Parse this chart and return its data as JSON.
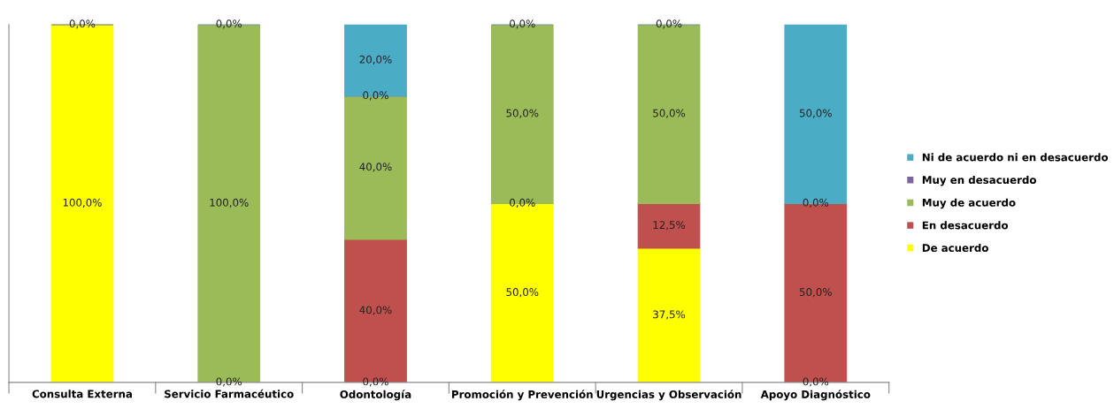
{
  "chart_data": {
    "type": "bar",
    "stacked": true,
    "tick_labels": "x",
    "grid": false,
    "legend": "right",
    "categories": [
      "Consulta Externa",
      "Servicio Farmacéutico",
      "Odontología",
      "Promoción y Prevención",
      "Urgencias y Observación",
      "Apoyo Diagnóstico"
    ],
    "series": [
      {
        "name": "De acuerdo",
        "color": "#ffff00",
        "values": [
          100,
          0,
          0,
          50,
          37.5,
          0
        ],
        "value_labels": [
          "100,0%",
          "0,0%",
          "0,0%",
          "50,0%",
          "37,5%",
          "0,0%"
        ]
      },
      {
        "name": "En desacuerdo",
        "color": "#c0504d",
        "values": [
          0,
          0,
          40,
          0,
          12.5,
          50
        ],
        "value_labels": [
          null,
          null,
          "40,0%",
          "0,0%",
          "12,5%",
          "50,0%"
        ]
      },
      {
        "name": "Muy de acuerdo",
        "color": "#9bbb59",
        "values": [
          0,
          100,
          40,
          50,
          50,
          0
        ],
        "value_labels": [
          null,
          "100,0%",
          "40,0%",
          "50,0%",
          "50,0%",
          "0,0%"
        ]
      },
      {
        "name": "Muy en desacuerdo",
        "color": "#8064a2",
        "values": [
          0,
          0,
          0,
          0,
          0,
          0
        ],
        "value_labels": [
          null,
          null,
          "0,0%",
          null,
          null,
          null
        ]
      },
      {
        "name": "Ni de acuerdo ni en desacuerdo",
        "color": "#4bacc6",
        "values": [
          0,
          0,
          20,
          0,
          0,
          50
        ],
        "value_labels": [
          "0,0%",
          "0,0%",
          "20,0%",
          "0,0%",
          "0,0%",
          "50,0%"
        ]
      }
    ]
  }
}
